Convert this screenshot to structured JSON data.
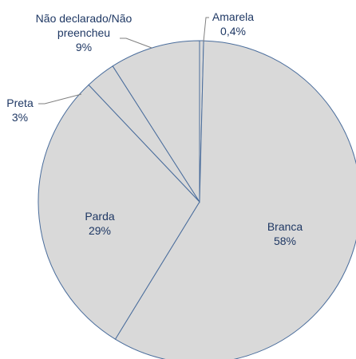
{
  "chart_data": {
    "type": "pie",
    "categories": [
      "Amarela",
      "Branca",
      "Parda",
      "Preta",
      "Não declarado/Não preencheu"
    ],
    "values": [
      0.4,
      58,
      29,
      3,
      9
    ],
    "value_labels": [
      "0,4%",
      "58%",
      "29%",
      "3%",
      "9%"
    ],
    "color": "#d9d9d9"
  }
}
